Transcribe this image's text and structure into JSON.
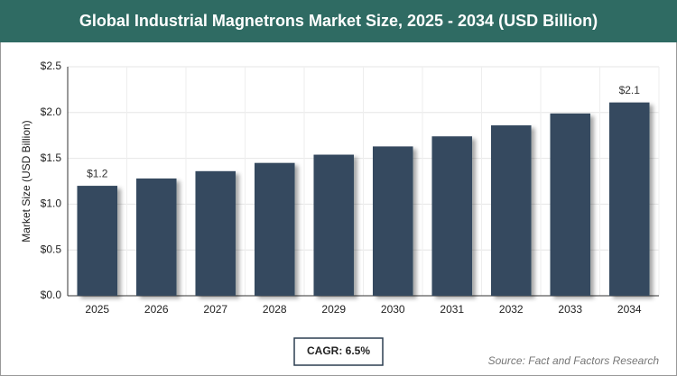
{
  "chart_data": {
    "type": "bar",
    "title": "Global Industrial Magnetrons Market Size, 2025 - 2034 (USD Billion)",
    "y_label": "Market Size (USD Billion)",
    "categories": [
      "2025",
      "2026",
      "2027",
      "2028",
      "2029",
      "2030",
      "2031",
      "2032",
      "2033",
      "2034"
    ],
    "values": [
      1.2,
      1.28,
      1.36,
      1.45,
      1.54,
      1.63,
      1.74,
      1.86,
      1.99,
      2.11
    ],
    "value_labels": [
      "$1.2",
      null,
      null,
      null,
      null,
      null,
      null,
      null,
      null,
      "$2.1"
    ],
    "color": "#34495e",
    "ylim": [
      0,
      2.5
    ],
    "yticks": [
      {
        "value": 0,
        "label": "$0.0"
      },
      {
        "value": 0.5,
        "label": "$0.5"
      },
      {
        "value": 1,
        "label": "$1.0"
      },
      {
        "value": 1.5,
        "label": "$1.5"
      },
      {
        "value": 2,
        "label": "$2.0"
      },
      {
        "value": 2.5,
        "label": "$2.5"
      }
    ],
    "grid": true,
    "cagr": "CAGR: 6.5%",
    "source": "Source: Fact and Factors Research"
  }
}
